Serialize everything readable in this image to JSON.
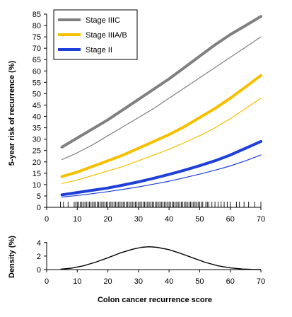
{
  "chart_data": [
    {
      "type": "line",
      "xlabel": "",
      "ylabel": "5-year risk of recurrence (%)",
      "xlim": [
        0,
        70
      ],
      "ylim": [
        0,
        85
      ],
      "x_ticks": [
        0,
        10,
        20,
        30,
        40,
        50,
        60,
        70
      ],
      "y_ticks": [
        0,
        5,
        10,
        15,
        20,
        25,
        30,
        35,
        40,
        45,
        50,
        55,
        60,
        65,
        70,
        75,
        80,
        85
      ],
      "grid": false,
      "legend": "top-left",
      "x": [
        5,
        10,
        15,
        20,
        25,
        30,
        35,
        40,
        45,
        50,
        55,
        60,
        65,
        70
      ],
      "series": [
        {
          "name": "Stage IIIC",
          "color": "#808080",
          "values": [
            26.5,
            30.5,
            34.5,
            38.5,
            43,
            47.5,
            52,
            56.5,
            61.5,
            66.5,
            71.5,
            76,
            80,
            84
          ]
        },
        {
          "name": "",
          "color": "#808080",
          "values": [
            21,
            24,
            27.5,
            31.5,
            35.5,
            39.5,
            43.5,
            48,
            52.5,
            57,
            61.5,
            66,
            70.5,
            75
          ]
        },
        {
          "name": "Stage IIIA/B",
          "color": "#f5c000",
          "values": [
            13.5,
            15.5,
            18,
            20.5,
            23,
            26,
            29,
            32,
            35.5,
            39.5,
            43.5,
            48,
            53,
            58
          ]
        },
        {
          "name": "",
          "color": "#f5c000",
          "values": [
            10.5,
            12,
            14,
            16,
            18,
            20.5,
            23,
            25.5,
            28.5,
            31.5,
            35,
            39,
            43.5,
            48
          ]
        },
        {
          "name": "Stage II",
          "color": "#1e3fd8",
          "values": [
            5.5,
            6.5,
            7.5,
            8.5,
            9.8,
            11.2,
            12.8,
            14.5,
            16.3,
            18.3,
            20.5,
            23,
            26,
            29
          ]
        },
        {
          "name": "",
          "color": "#1e3fd8",
          "values": [
            4.5,
            5.2,
            6,
            6.9,
            7.9,
            9,
            10.2,
            11.5,
            13,
            14.6,
            16.3,
            18.2,
            20.5,
            23
          ]
        }
      ],
      "rug": [
        4.5,
        5.5,
        7,
        9,
        9.5,
        10,
        10.5,
        11,
        11.5,
        12,
        12.5,
        13,
        13.5,
        14,
        14.5,
        15,
        15.5,
        16,
        16.5,
        17,
        17.5,
        18,
        18.5,
        19,
        19.5,
        20,
        20.5,
        21,
        21.5,
        22,
        22.5,
        23,
        23.5,
        24,
        24.5,
        25,
        25.5,
        26,
        26.5,
        27,
        27.5,
        28,
        28.5,
        29,
        29.5,
        30,
        30.5,
        31,
        31.5,
        32,
        32.5,
        33,
        33.5,
        34,
        34.5,
        35,
        35.5,
        36,
        36.5,
        37,
        37.5,
        38,
        38.5,
        39,
        39.5,
        40,
        40.5,
        41,
        41.5,
        42,
        42.5,
        43,
        43.5,
        44,
        44.5,
        45,
        45.5,
        46,
        46.5,
        47,
        47.5,
        48,
        48.5,
        49,
        49.5,
        50,
        50.5,
        51,
        52,
        52.5,
        53,
        54,
        55,
        56,
        57,
        58,
        59,
        60,
        62,
        63,
        64.5,
        66,
        68,
        70
      ]
    },
    {
      "type": "line",
      "xlabel": "Colon cancer recurrence score",
      "ylabel": "Density (%)",
      "xlim": [
        0,
        70
      ],
      "ylim": [
        0,
        4.5
      ],
      "x_ticks": [
        0,
        10,
        20,
        30,
        40,
        50,
        60,
        70
      ],
      "y_ticks": [
        0,
        2,
        4
      ],
      "grid": false,
      "x": [
        4.5,
        8,
        12,
        16,
        20,
        24,
        28,
        31,
        33.5,
        36,
        40,
        44,
        48,
        52,
        56,
        60,
        64,
        67,
        70
      ],
      "series": [
        {
          "name": "",
          "color": "#000000",
          "values": [
            0.05,
            0.2,
            0.55,
            1.1,
            1.75,
            2.45,
            3.0,
            3.3,
            3.38,
            3.3,
            2.95,
            2.35,
            1.7,
            1.05,
            0.55,
            0.25,
            0.08,
            0.03,
            0.01
          ]
        }
      ]
    }
  ]
}
